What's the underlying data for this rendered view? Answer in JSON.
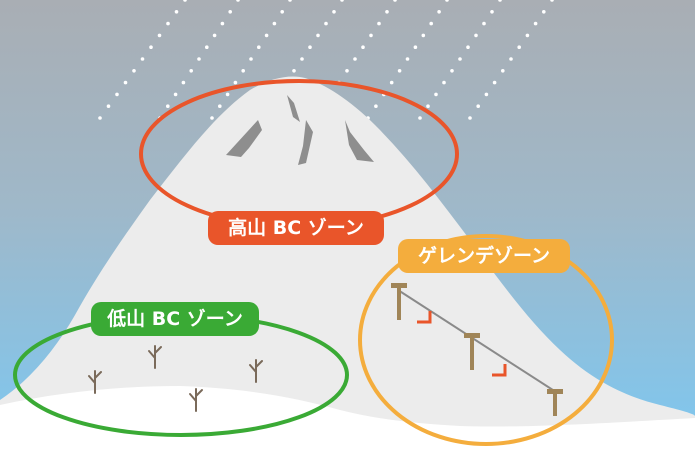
{
  "zones": {
    "alpine": {
      "label": "高山 BC ゾーン",
      "color": "#e9552a"
    },
    "lowland": {
      "label": "低山 BC ゾーン",
      "color": "#3aaa35"
    },
    "gelande": {
      "label": "ゲレンデゾーン",
      "color": "#f4ad3d"
    }
  },
  "colors": {
    "sky_top": "#a9aeb4",
    "sky_bottom": "#7cc8f2",
    "snow": "#ececec",
    "rock": "#8e8e8e",
    "tree": "#7a6a5a",
    "lift_post": "#a08558",
    "lift_cable": "#8a8a8a",
    "chair": "#e9552a"
  }
}
